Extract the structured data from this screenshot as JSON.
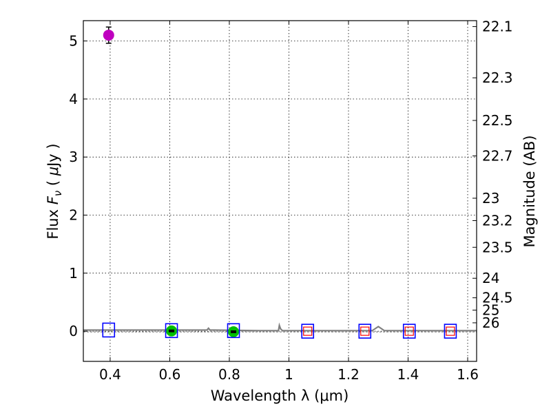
{
  "chart_data": {
    "type": "scatter",
    "title": "",
    "xlabel": "Wavelength  λ (μm)",
    "ylabel": "Flux  F_ν  ( μJy )",
    "ylabel_parts": [
      "Flux  ",
      "F",
      "ν",
      "  ( ",
      "μ",
      "Jy )"
    ],
    "y2label": "Magnitude (AB)",
    "xlim": [
      0.31,
      1.63
    ],
    "ylim": [
      -0.52,
      5.35
    ],
    "grid": true,
    "x_ticks": [
      {
        "value": 0.4,
        "label": "0.4"
      },
      {
        "value": 0.6,
        "label": "0.6"
      },
      {
        "value": 0.8,
        "label": "0.8"
      },
      {
        "value": 1.0,
        "label": "1"
      },
      {
        "value": 1.2,
        "label": "1.2"
      },
      {
        "value": 1.4,
        "label": "1.4"
      },
      {
        "value": 1.6,
        "label": "1.6"
      }
    ],
    "y_ticks": [
      {
        "value": 0,
        "label": "0"
      },
      {
        "value": 1,
        "label": "1"
      },
      {
        "value": 2,
        "label": "2"
      },
      {
        "value": 3,
        "label": "3"
      },
      {
        "value": 4,
        "label": "4"
      },
      {
        "value": 5,
        "label": "5"
      }
    ],
    "mag_ticks": [
      {
        "mag": 22.1,
        "label": "22.1"
      },
      {
        "mag": 22.3,
        "label": "22.3"
      },
      {
        "mag": 22.5,
        "label": "22.5"
      },
      {
        "mag": 22.7,
        "label": "22.7"
      },
      {
        "mag": 23.0,
        "label": "23"
      },
      {
        "mag": 23.2,
        "label": "23.2"
      },
      {
        "mag": 23.5,
        "label": "23.5"
      },
      {
        "mag": 24.0,
        "label": "24"
      },
      {
        "mag": 24.5,
        "label": "24.5"
      },
      {
        "mag": 25.0,
        "label": "25"
      },
      {
        "mag": 26.0,
        "label": "26"
      }
    ],
    "series": [
      {
        "name": "model_sed",
        "kind": "line",
        "color": "#808080",
        "x": [
          0.31,
          0.5,
          0.7,
          0.725,
          0.73,
          0.735,
          0.75,
          0.9,
          0.965,
          0.968,
          0.972,
          0.978,
          1.1,
          1.28,
          1.3,
          1.32,
          1.4,
          1.63
        ],
        "y": [
          0.02,
          0.02,
          0.02,
          0.02,
          0.05,
          0.02,
          0.02,
          0.01,
          0.01,
          0.1,
          0.04,
          0.01,
          0.01,
          0.01,
          0.08,
          0.01,
          0.01,
          0.01
        ]
      },
      {
        "name": "magenta_detection",
        "kind": "marker",
        "marker": "circle",
        "color": "#bf00bf",
        "points": [
          {
            "x": 0.395,
            "y": 5.1,
            "yerr": 0.14
          }
        ]
      },
      {
        "name": "green_detections",
        "kind": "marker",
        "marker": "circle",
        "color": "#00bf00",
        "points": [
          {
            "x": 0.606,
            "y": 0.005,
            "yerr": 0.03
          },
          {
            "x": 0.814,
            "y": -0.01,
            "yerr": 0.03
          }
        ]
      },
      {
        "name": "model_photometry",
        "kind": "marker",
        "marker": "square_open",
        "color": "#0000ff",
        "points": [
          {
            "x": 0.395,
            "y": 0.02
          },
          {
            "x": 0.606,
            "y": 0.01
          },
          {
            "x": 0.814,
            "y": 0.01
          },
          {
            "x": 1.063,
            "y": 0.0
          },
          {
            "x": 1.255,
            "y": 0.0
          },
          {
            "x": 1.404,
            "y": 0.0
          },
          {
            "x": 1.542,
            "y": 0.0
          }
        ]
      },
      {
        "name": "upper_limits",
        "kind": "marker",
        "marker": "square_open_small",
        "color": "#ff0000",
        "points": [
          {
            "x": 1.063,
            "y": 0.0
          },
          {
            "x": 1.255,
            "y": 0.0
          },
          {
            "x": 1.404,
            "y": 0.0
          },
          {
            "x": 1.542,
            "y": 0.0
          }
        ]
      }
    ]
  }
}
